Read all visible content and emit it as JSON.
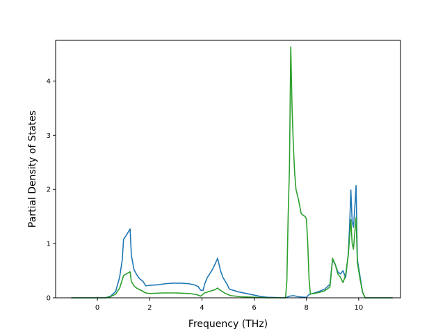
{
  "chart_data": {
    "type": "line",
    "title": "",
    "xlabel": "Frequency (THz)",
    "ylabel": "Partial Density of States",
    "xlim": [
      -1.6,
      11.6
    ],
    "ylim": [
      0,
      4.75
    ],
    "xticks": [
      0,
      2,
      4,
      6,
      8,
      10
    ],
    "yticks": [
      0,
      1,
      2,
      3,
      4
    ],
    "grid": false,
    "legend": "none",
    "series": [
      {
        "color": "#1f77b4",
        "x": [
          -1.0,
          0.3,
          0.5,
          0.7,
          0.85,
          0.95,
          1.0,
          1.1,
          1.2,
          1.25,
          1.3,
          1.4,
          1.5,
          1.6,
          1.75,
          1.85,
          2.0,
          2.3,
          2.6,
          2.9,
          3.2,
          3.5,
          3.7,
          3.85,
          3.95,
          4.05,
          4.1,
          4.2,
          4.4,
          4.5,
          4.6,
          4.7,
          4.8,
          4.95,
          5.05,
          5.4,
          5.8,
          6.2,
          6.5,
          7.2,
          7.35,
          7.5,
          7.7,
          7.9,
          8.0,
          8.1,
          8.3,
          8.5,
          8.7,
          8.9,
          9.0,
          9.1,
          9.2,
          9.3,
          9.4,
          9.5,
          9.6,
          9.65,
          9.7,
          9.75,
          9.8,
          9.85,
          9.9,
          9.95,
          10.05,
          10.15,
          10.25,
          11.3
        ],
        "y": [
          0.0,
          0.0,
          0.03,
          0.12,
          0.38,
          0.7,
          1.08,
          1.15,
          1.23,
          1.27,
          0.78,
          0.52,
          0.43,
          0.36,
          0.3,
          0.22,
          0.23,
          0.24,
          0.26,
          0.27,
          0.27,
          0.26,
          0.24,
          0.21,
          0.14,
          0.14,
          0.25,
          0.37,
          0.52,
          0.62,
          0.73,
          0.52,
          0.38,
          0.26,
          0.16,
          0.11,
          0.07,
          0.03,
          0.01,
          0.0,
          0.03,
          0.04,
          0.02,
          0.01,
          0.01,
          0.06,
          0.09,
          0.12,
          0.16,
          0.25,
          0.7,
          0.62,
          0.48,
          0.44,
          0.5,
          0.37,
          0.8,
          1.3,
          1.99,
          1.4,
          1.3,
          1.65,
          2.07,
          0.7,
          0.4,
          0.1,
          0.0,
          0.0
        ]
      },
      {
        "color": "#2ca02c",
        "x": [
          -1.0,
          0.3,
          0.5,
          0.7,
          0.85,
          1.0,
          1.1,
          1.25,
          1.3,
          1.4,
          1.5,
          1.7,
          1.85,
          2.0,
          2.5,
          3.0,
          3.5,
          3.8,
          3.95,
          4.1,
          4.3,
          4.5,
          4.6,
          4.7,
          4.9,
          5.1,
          5.5,
          6.0,
          6.5,
          7.2,
          7.25,
          7.3,
          7.35,
          7.4,
          7.45,
          7.5,
          7.55,
          7.6,
          7.7,
          7.8,
          7.95,
          8.0,
          8.05,
          8.1,
          8.15,
          8.3,
          8.5,
          8.7,
          8.9,
          9.0,
          9.1,
          9.2,
          9.3,
          9.4,
          9.5,
          9.6,
          9.65,
          9.7,
          9.75,
          9.8,
          9.85,
          9.9,
          9.95,
          10.05,
          10.15,
          10.25,
          11.3
        ],
        "y": [
          0.0,
          0.0,
          0.02,
          0.07,
          0.18,
          0.41,
          0.44,
          0.48,
          0.3,
          0.22,
          0.18,
          0.13,
          0.09,
          0.08,
          0.09,
          0.09,
          0.08,
          0.06,
          0.03,
          0.09,
          0.12,
          0.15,
          0.18,
          0.14,
          0.08,
          0.04,
          0.02,
          0.01,
          0.0,
          0.0,
          0.3,
          1.5,
          2.4,
          4.63,
          3.5,
          2.8,
          2.3,
          2.0,
          1.8,
          1.55,
          1.5,
          1.45,
          1.0,
          0.35,
          0.07,
          0.08,
          0.1,
          0.13,
          0.2,
          0.73,
          0.62,
          0.44,
          0.38,
          0.28,
          0.42,
          0.78,
          1.1,
          1.44,
          1.0,
          0.9,
          1.2,
          1.48,
          0.65,
          0.35,
          0.1,
          0.0,
          0.0
        ]
      }
    ]
  }
}
